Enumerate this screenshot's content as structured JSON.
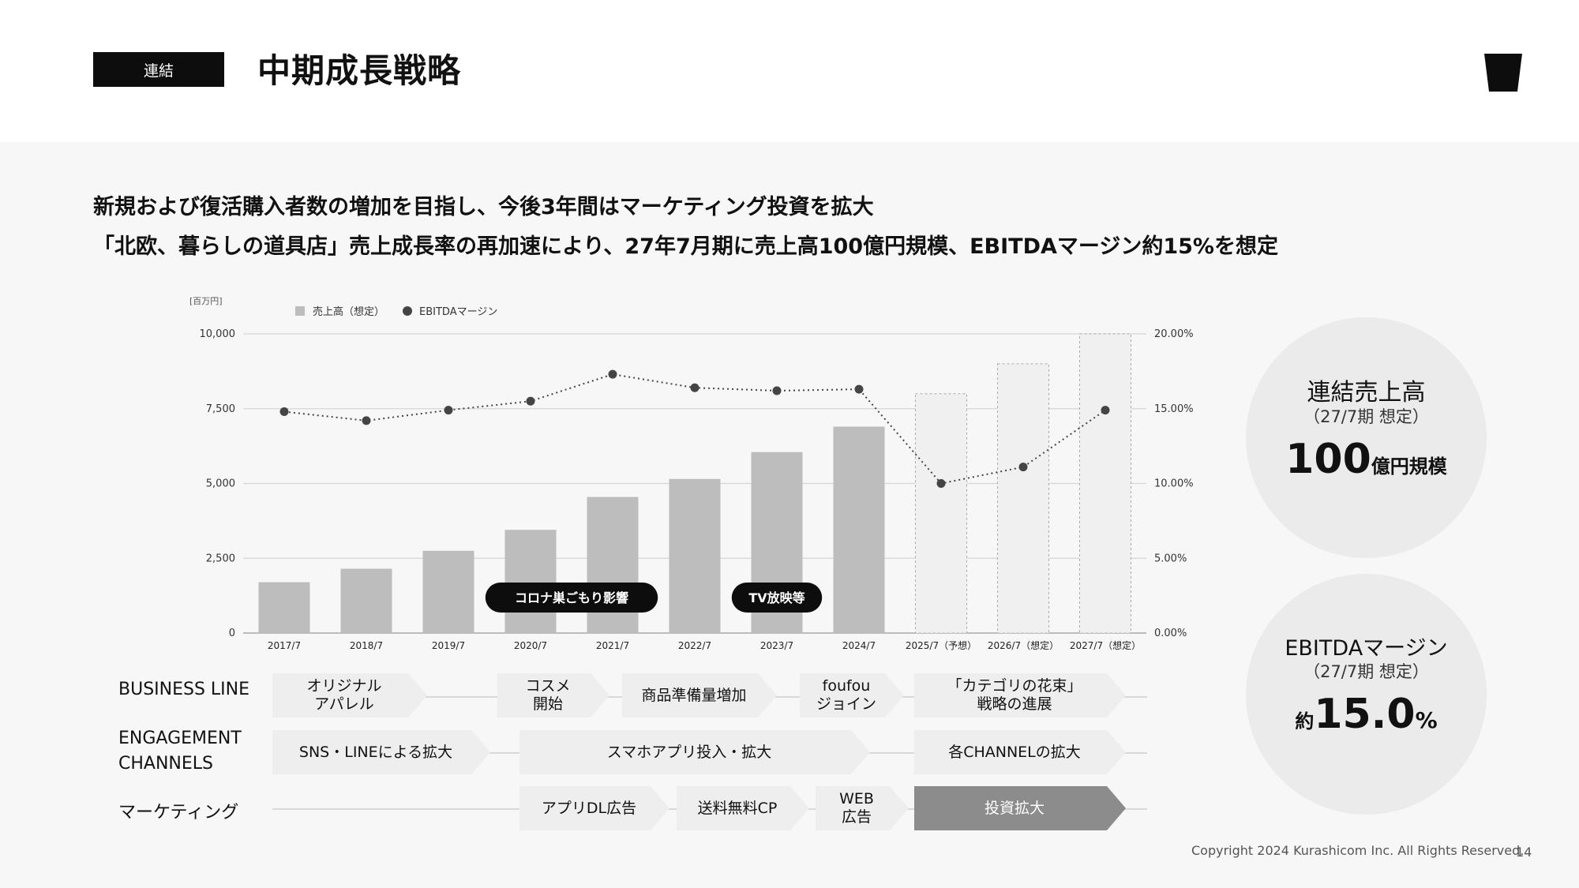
{
  "header": {
    "badge": "連結",
    "title": "中期成長戦略"
  },
  "subtitle": {
    "line1": "新規および復活購入者数の増加を目指し、今後3年間はマーケティング投資を拡大",
    "line2": "「北欧、暮らしの道具店」売上成長率の再加速により、27年7月期に売上高100億円規模、EBITDAマージン約15%を想定"
  },
  "chart_data": {
    "type": "bar",
    "unit_label": "[百万円]",
    "categories": [
      "2017/7",
      "2018/7",
      "2019/7",
      "2020/7",
      "2021/7",
      "2022/7",
      "2023/7",
      "2024/7",
      "2025/7（予想）",
      "2026/7（想定）",
      "2027/7（想定）"
    ],
    "series": [
      {
        "name": "売上高（想定）",
        "type": "bar",
        "values": [
          1700,
          2150,
          2750,
          3450,
          4550,
          5150,
          6050,
          6900,
          8000,
          9000,
          10000
        ],
        "forecast_from_index": 8
      },
      {
        "name": "EBITDAマージン",
        "type": "line",
        "axis": "right",
        "values": [
          14.8,
          14.2,
          14.9,
          15.5,
          17.3,
          16.4,
          16.2,
          16.3,
          10.0,
          11.1,
          14.9
        ]
      }
    ],
    "left_axis": {
      "ylim": [
        0,
        10000
      ],
      "ticks": [
        "0",
        "2,500",
        "5,000",
        "7,500",
        "10,000"
      ]
    },
    "right_axis": {
      "ylim": [
        0,
        20
      ],
      "ticks": [
        "0.00%",
        "5.00%",
        "10.00%",
        "15.00%",
        "20.00%"
      ]
    },
    "legend": {
      "bar": "売上高（想定）",
      "line": "EBITDAマージン",
      "position": "top-left"
    },
    "annotations": [
      {
        "text": "コロナ巣ごもり影響",
        "category_from": 3,
        "category_to": 4
      },
      {
        "text": "TV放映等",
        "category_from": 6,
        "category_to": 6
      }
    ],
    "colors": {
      "bar": "#bdbdbd",
      "forecast_bar": "#f0f0f0",
      "line": "#444444",
      "grid": "#d6d6d6"
    }
  },
  "roadmap": {
    "rows": [
      {
        "label": "BUSINESS LINE"
      },
      {
        "label": "ENGAGEMENT\nCHANNELS"
      },
      {
        "label": "マーケティング"
      }
    ],
    "items": [
      {
        "text": "オリジナル\nアパレル"
      },
      {
        "text": "コスメ\n開始"
      },
      {
        "text": "商品準備量増加"
      },
      {
        "text": "foufou\nジョイン"
      },
      {
        "text": "「カテゴリの花束」\n戦略の進展"
      },
      {
        "text": "SNS・LINEによる拡大"
      },
      {
        "text": "スマホアプリ投入・拡大"
      },
      {
        "text": "各CHANNELの拡大"
      },
      {
        "text": "アプリDL広告"
      },
      {
        "text": "送料無料CP"
      },
      {
        "text": "WEB\n広告"
      },
      {
        "text": "投資拡大"
      }
    ]
  },
  "kpi": {
    "sales": {
      "title": "連結売上高",
      "sub": "（27/7期 想定）",
      "value": "100",
      "suffix": "億円規模"
    },
    "ebitda": {
      "title": "EBITDAマージン",
      "sub": "（27/7期 想定）",
      "prefix": "約",
      "value": "15.0",
      "suffix": "%"
    }
  },
  "footer": {
    "copyright": "Copyright 2024 Kurashicom Inc. All Rights Reserved.",
    "page": "14"
  }
}
